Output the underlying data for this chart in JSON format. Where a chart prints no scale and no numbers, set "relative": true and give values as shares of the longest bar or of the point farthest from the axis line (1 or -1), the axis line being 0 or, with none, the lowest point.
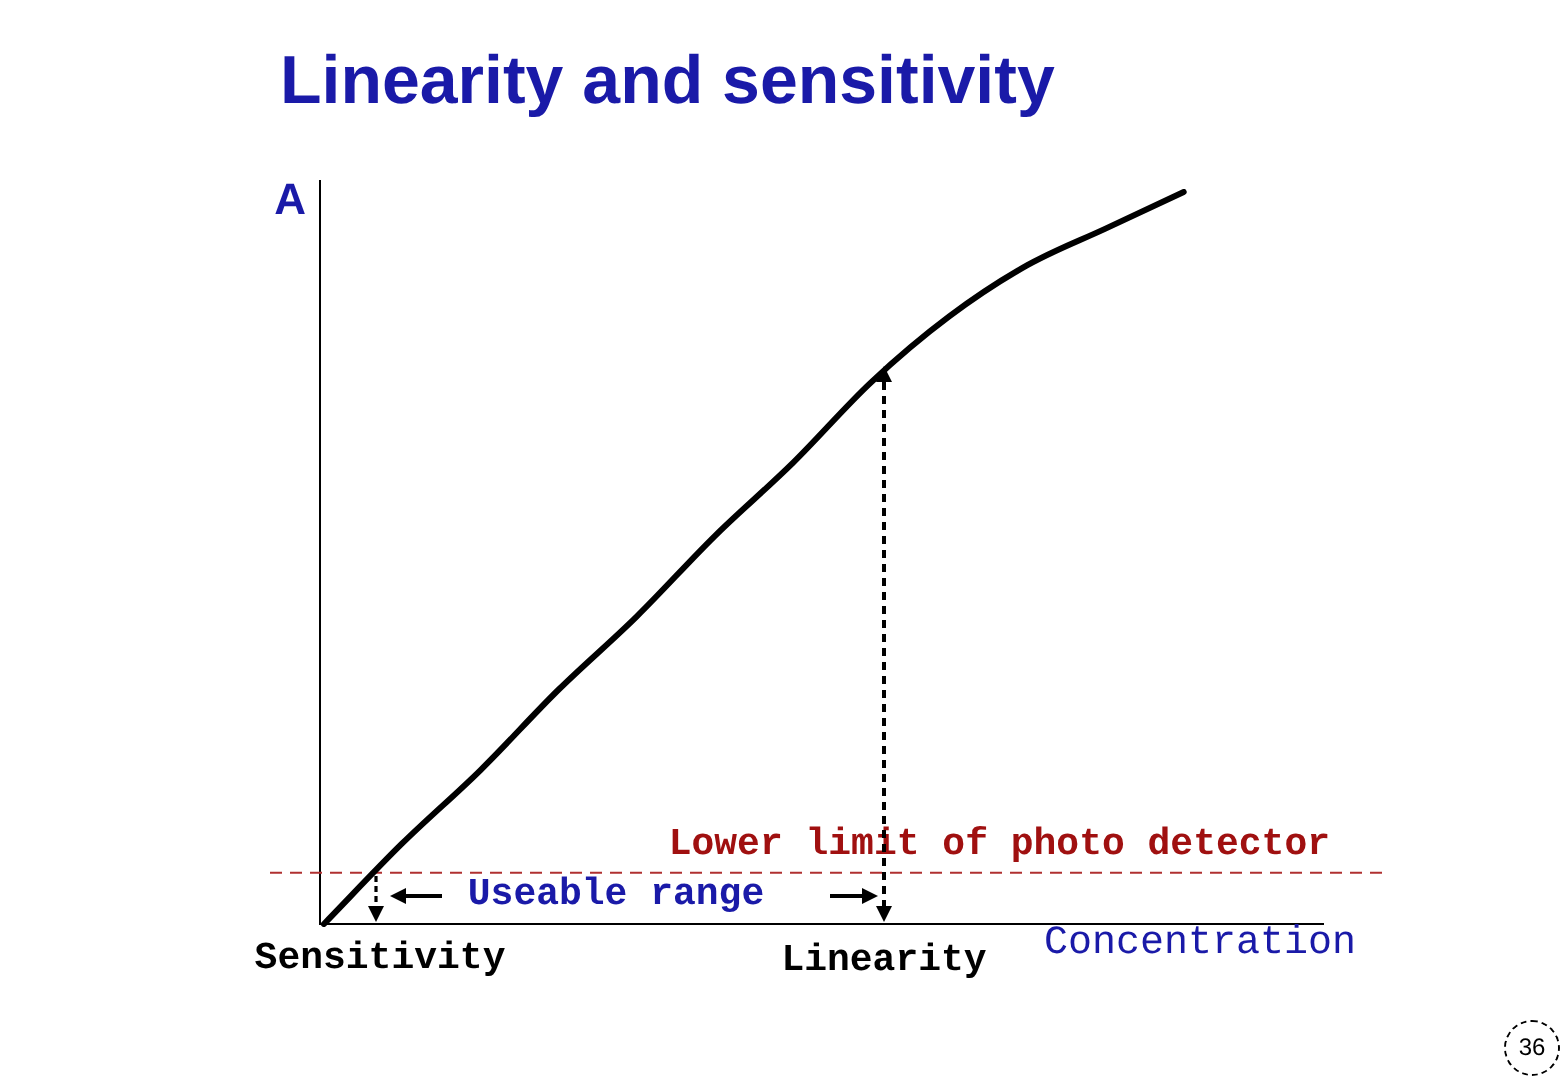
{
  "chart_data": {
    "type": "line",
    "title": "Linearity and sensitivity",
    "ylabel": "A",
    "xlabel": "Concentration",
    "relative": true,
    "categories": [
      null,
      null,
      null,
      null,
      null,
      null,
      null,
      null,
      null,
      null,
      null,
      null,
      null,
      null
    ],
    "values": [
      0,
      0.11,
      0.21,
      0.32,
      0.42,
      0.53,
      0.63,
      0.74,
      0.83,
      0.9,
      0.95,
      1,
      null,
      null
    ],
    "color": "#000000",
    "ref_lines": [
      {
        "axis": "y",
        "value": 0.07,
        "label": "Lower limit of photo detector",
        "color": "#b03030",
        "line_style": "dashed"
      }
    ],
    "annotations": [
      "Sensitivity",
      "Linearity",
      "Useable range",
      "36"
    ]
  }
}
